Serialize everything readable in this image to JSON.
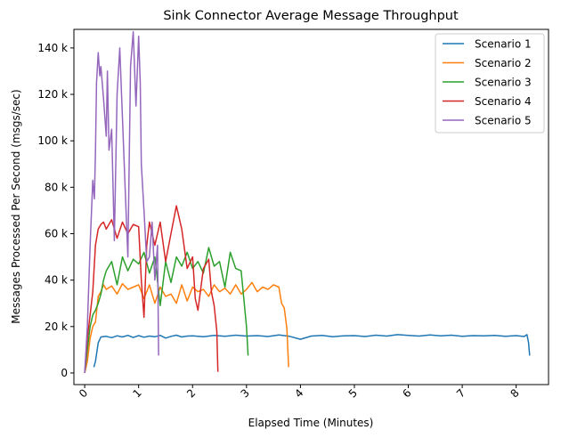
{
  "chart_data": {
    "type": "line",
    "title": "Sink Connector Average Message Throughput",
    "xlabel": "Elapsed Time (Minutes)",
    "ylabel": "Messages Processed Per Second (msgs/sec)",
    "xlim": [
      -0.2,
      8.6
    ],
    "ylim": [
      -5000,
      148000
    ],
    "xticks": [
      0,
      1,
      2,
      3,
      4,
      5,
      6,
      7,
      8
    ],
    "xtick_labels": [
      "0",
      "1",
      "2",
      "3",
      "4",
      "5",
      "6",
      "7",
      "8"
    ],
    "yticks": [
      0,
      20000,
      40000,
      60000,
      80000,
      100000,
      120000,
      140000
    ],
    "ytick_labels": [
      "0",
      "20 k",
      "40 k",
      "60 k",
      "80 k",
      "100 k",
      "120 k",
      "140 k"
    ],
    "grid": false,
    "legend_position": "top-right",
    "series": [
      {
        "name": "Scenario 1",
        "color": "#1f77b4",
        "x": [
          0.17,
          0.2,
          0.25,
          0.3,
          0.4,
          0.5,
          0.6,
          0.7,
          0.8,
          0.9,
          1.0,
          1.1,
          1.2,
          1.3,
          1.4,
          1.5,
          1.6,
          1.7,
          1.8,
          1.9,
          2.0,
          2.2,
          2.4,
          2.6,
          2.8,
          3.0,
          3.2,
          3.4,
          3.6,
          3.8,
          4.0,
          4.2,
          4.4,
          4.6,
          4.8,
          5.0,
          5.2,
          5.4,
          5.6,
          5.8,
          6.0,
          6.2,
          6.4,
          6.6,
          6.8,
          7.0,
          7.2,
          7.4,
          7.6,
          7.8,
          8.0,
          8.15,
          8.2,
          8.23,
          8.25
        ],
        "y": [
          2500,
          5000,
          13000,
          15500,
          15800,
          15200,
          16000,
          15500,
          16200,
          15300,
          16100,
          15400,
          15900,
          15600,
          16200,
          15000,
          15800,
          16300,
          15500,
          15900,
          16000,
          15600,
          16200,
          15800,
          16300,
          15900,
          16100,
          15700,
          16400,
          15800,
          14500,
          15900,
          16200,
          15600,
          16000,
          16100,
          15700,
          16300,
          15900,
          16500,
          16200,
          15900,
          16400,
          16000,
          16300,
          15800,
          16100,
          16000,
          16200,
          15800,
          16100,
          15700,
          16500,
          13000,
          7500
        ]
      },
      {
        "name": "Scenario 2",
        "color": "#ff7f0e",
        "x": [
          0.0,
          0.05,
          0.1,
          0.15,
          0.2,
          0.25,
          0.3,
          0.35,
          0.4,
          0.5,
          0.6,
          0.7,
          0.8,
          0.9,
          1.0,
          1.1,
          1.2,
          1.3,
          1.4,
          1.5,
          1.6,
          1.7,
          1.8,
          1.9,
          2.0,
          2.1,
          2.2,
          2.3,
          2.4,
          2.5,
          2.6,
          2.7,
          2.8,
          2.9,
          3.0,
          3.1,
          3.2,
          3.3,
          3.4,
          3.5,
          3.6,
          3.65,
          3.7,
          3.75,
          3.78
        ],
        "y": [
          0,
          5000,
          15000,
          20000,
          22000,
          33000,
          35000,
          38000,
          36000,
          37500,
          34000,
          38500,
          36000,
          37000,
          38000,
          32000,
          38000,
          30000,
          37000,
          33000,
          34000,
          30000,
          38000,
          31000,
          37000,
          35000,
          36000,
          33000,
          38000,
          35000,
          36500,
          34000,
          38000,
          34000,
          36000,
          39000,
          35000,
          37000,
          36000,
          38000,
          37000,
          30000,
          28000,
          19000,
          2500
        ]
      },
      {
        "name": "Scenario 3",
        "color": "#2ca02c",
        "x": [
          0.0,
          0.05,
          0.1,
          0.15,
          0.2,
          0.25,
          0.3,
          0.35,
          0.4,
          0.5,
          0.6,
          0.7,
          0.8,
          0.9,
          1.0,
          1.1,
          1.2,
          1.3,
          1.4,
          1.5,
          1.6,
          1.7,
          1.8,
          1.9,
          2.0,
          2.1,
          2.2,
          2.3,
          2.4,
          2.5,
          2.6,
          2.7,
          2.8,
          2.9,
          3.0,
          3.03
        ],
        "y": [
          0,
          10000,
          20000,
          25000,
          27000,
          30000,
          34000,
          40000,
          44000,
          48000,
          38000,
          50000,
          44000,
          49000,
          47000,
          52000,
          43000,
          50000,
          29000,
          48000,
          39000,
          50000,
          46000,
          52000,
          45000,
          48000,
          43000,
          54000,
          46000,
          48000,
          37000,
          52000,
          45000,
          44000,
          20000,
          7500
        ]
      },
      {
        "name": "Scenario 4",
        "color": "#d62728",
        "x": [
          0.0,
          0.05,
          0.1,
          0.15,
          0.2,
          0.25,
          0.3,
          0.35,
          0.4,
          0.5,
          0.6,
          0.7,
          0.8,
          0.9,
          1.0,
          1.05,
          1.1,
          1.15,
          1.2,
          1.3,
          1.4,
          1.5,
          1.6,
          1.7,
          1.8,
          1.9,
          2.0,
          2.05,
          2.1,
          2.2,
          2.3,
          2.35,
          2.4,
          2.45,
          2.47
        ],
        "y": [
          0,
          15000,
          25000,
          35000,
          55000,
          62000,
          64000,
          65000,
          62000,
          66000,
          58000,
          65000,
          60000,
          64000,
          63000,
          40000,
          24000,
          55000,
          65000,
          55000,
          65000,
          48000,
          60000,
          72000,
          62000,
          45000,
          50000,
          32000,
          27000,
          45000,
          49000,
          35000,
          29000,
          18000,
          500
        ]
      },
      {
        "name": "Scenario 5",
        "color": "#9467bd",
        "x": [
          0.0,
          0.05,
          0.1,
          0.15,
          0.18,
          0.2,
          0.22,
          0.25,
          0.28,
          0.3,
          0.35,
          0.4,
          0.42,
          0.45,
          0.5,
          0.55,
          0.6,
          0.65,
          0.7,
          0.75,
          0.8,
          0.85,
          0.9,
          0.95,
          1.0,
          1.03,
          1.05,
          1.1,
          1.15,
          1.2,
          1.25,
          1.3,
          1.35,
          1.37
        ],
        "y": [
          0,
          20000,
          55000,
          83000,
          75000,
          95000,
          125000,
          138000,
          128000,
          132000,
          118000,
          102000,
          130000,
          96000,
          105000,
          57000,
          120000,
          140000,
          110000,
          80000,
          50000,
          132000,
          147000,
          115000,
          145000,
          125000,
          90000,
          70000,
          48000,
          50000,
          65000,
          40000,
          55000,
          7500
        ]
      }
    ]
  }
}
